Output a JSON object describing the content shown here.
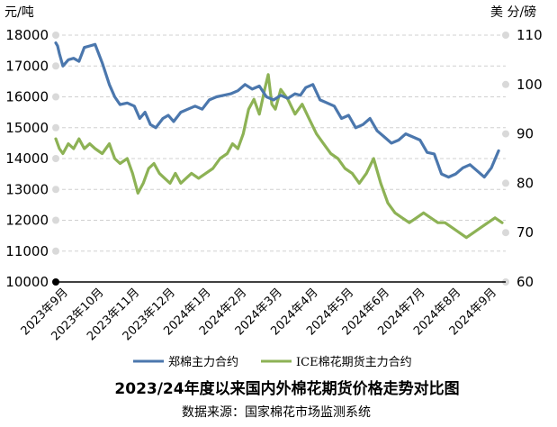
{
  "chart_data": {
    "type": "line",
    "title": "2023/24年度以来国内外棉花期货价格走势对比图",
    "source": "数据来源：国家棉花市场监测系统",
    "left_axis": {
      "unit": "元/吨",
      "ylim": [
        10000,
        18000
      ],
      "ticks": [
        "10000",
        "11000",
        "12000",
        "13000",
        "14000",
        "15000",
        "16000",
        "17000",
        "18000"
      ]
    },
    "right_axis": {
      "unit": "美 分/磅",
      "ylim": [
        60,
        110
      ],
      "ticks": [
        "60",
        "70",
        "80",
        "90",
        "100",
        "110"
      ]
    },
    "x_labels": [
      "2023年9月",
      "2023年10月",
      "2023年11月",
      "2023年12月",
      "2024年1月",
      "2024年2月",
      "2024年3月",
      "2024年4月",
      "2024年5月",
      "2024年6月",
      "2024年7月",
      "2024年8月",
      "2024年9月"
    ],
    "grid": "horizontal dashed",
    "legend_position": "bottom",
    "colors": {
      "series_1": "#4b77ad",
      "series_2": "#8db255",
      "grid": "#d0d0d0",
      "tick_dot": "#d9d9d9"
    },
    "series": [
      {
        "name": "郑棉主力合约",
        "axis": "left",
        "x": [
          0,
          0.05,
          0.1,
          0.2,
          0.35,
          0.5,
          0.65,
          0.8,
          0.95,
          1.1,
          1.3,
          1.5,
          1.65,
          1.8,
          2.0,
          2.2,
          2.35,
          2.5,
          2.65,
          2.8,
          3.0,
          3.15,
          3.3,
          3.5,
          3.7,
          3.9,
          4.1,
          4.3,
          4.5,
          4.7,
          4.9,
          5.1,
          5.3,
          5.5,
          5.7,
          5.9,
          6.1,
          6.3,
          6.5,
          6.7,
          6.85,
          7.0,
          7.2,
          7.4,
          7.6,
          7.8,
          8.0,
          8.2,
          8.4,
          8.6,
          8.8,
          9.0,
          9.2,
          9.4,
          9.6,
          9.8,
          10.0,
          10.2,
          10.4,
          10.6,
          10.8,
          11.0,
          11.2,
          11.4,
          11.6,
          11.8,
          12.0,
          12.2,
          12.4
        ],
        "values": [
          17750,
          17650,
          17400,
          17000,
          17200,
          17250,
          17150,
          17600,
          17650,
          17700,
          17100,
          16400,
          16000,
          15750,
          15800,
          15700,
          15300,
          15500,
          15100,
          15000,
          15300,
          15400,
          15200,
          15500,
          15600,
          15700,
          15600,
          15900,
          16000,
          16050,
          16100,
          16200,
          16400,
          16250,
          16350,
          16000,
          15900,
          16050,
          15950,
          16100,
          16050,
          16300,
          16400,
          15900,
          15800,
          15700,
          15300,
          15400,
          15000,
          15100,
          15300,
          14900,
          14700,
          14500,
          14600,
          14800,
          14700,
          14600,
          14200,
          14150,
          13500,
          13400,
          13500,
          13700,
          13800,
          13600,
          13400,
          13700,
          14250
        ]
      },
      {
        "name": "ICE棉花期货主力合约",
        "axis": "right",
        "x": [
          0,
          0.1,
          0.2,
          0.35,
          0.5,
          0.65,
          0.8,
          0.95,
          1.1,
          1.3,
          1.5,
          1.65,
          1.8,
          2.0,
          2.15,
          2.3,
          2.45,
          2.6,
          2.75,
          2.9,
          3.05,
          3.2,
          3.35,
          3.5,
          3.65,
          3.8,
          4.0,
          4.2,
          4.4,
          4.6,
          4.8,
          4.95,
          5.1,
          5.25,
          5.4,
          5.55,
          5.7,
          5.85,
          5.95,
          6.05,
          6.15,
          6.3,
          6.5,
          6.7,
          6.9,
          7.1,
          7.3,
          7.5,
          7.7,
          7.9,
          8.1,
          8.3,
          8.5,
          8.7,
          8.9,
          9.1,
          9.3,
          9.5,
          9.7,
          9.9,
          10.1,
          10.3,
          10.5,
          10.7,
          10.9,
          11.1,
          11.3,
          11.5,
          11.7,
          11.9,
          12.1,
          12.3,
          12.5
        ],
        "values": [
          89,
          87,
          86,
          88,
          87,
          89,
          87,
          88,
          87,
          86,
          88,
          85,
          84,
          85,
          82,
          78,
          80,
          83,
          84,
          82,
          81,
          80,
          82,
          80,
          81,
          82,
          81,
          82,
          83,
          85,
          86,
          88,
          87,
          90,
          95,
          97,
          94,
          99,
          102,
          96,
          95,
          99,
          97,
          94,
          96,
          93,
          90,
          88,
          86,
          85,
          83,
          82,
          80,
          82,
          85,
          80,
          76,
          74,
          73,
          72,
          73,
          74,
          73,
          72,
          72,
          71,
          70,
          69,
          70,
          71,
          72,
          73,
          72
        ]
      }
    ]
  }
}
